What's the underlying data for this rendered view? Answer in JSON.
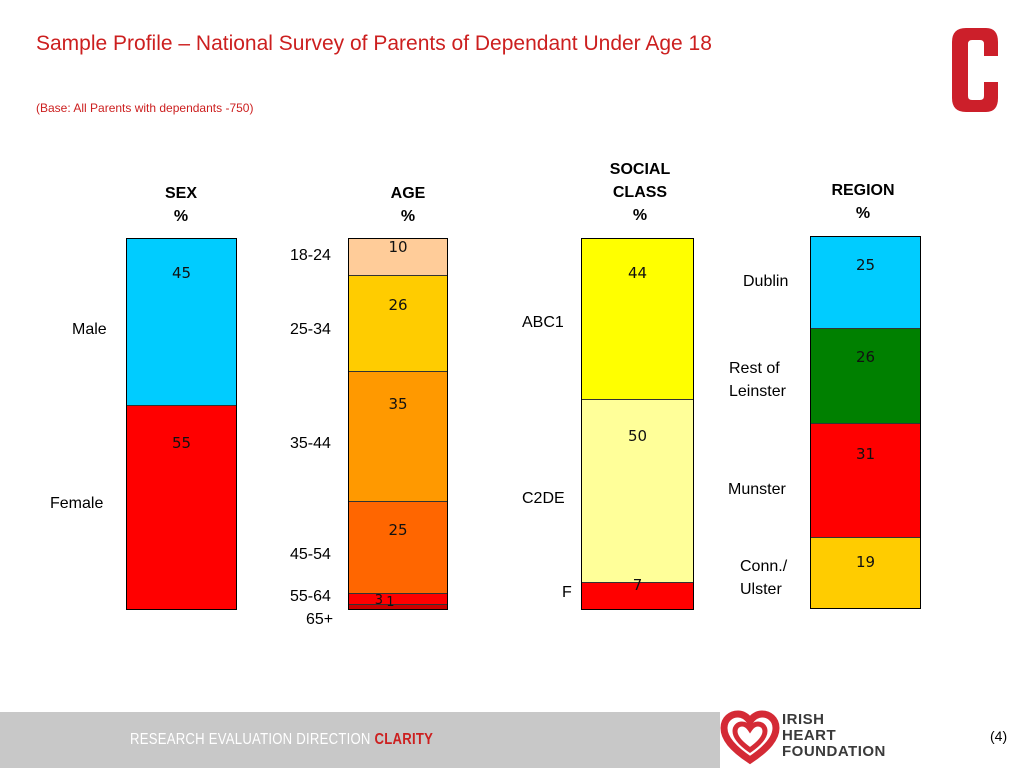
{
  "header": {
    "title": "Sample Profile – National Survey of Parents of Dependant Under Age 18",
    "subtitle": "(Base: All Parents with dependants -750)"
  },
  "chart_data": [
    {
      "type": "bar",
      "title": "SEX",
      "unit": "%",
      "stacked": true,
      "categories": [
        "Male",
        "Female"
      ],
      "values": [
        45,
        55
      ],
      "colors": [
        "#00ccff",
        "#ff0000"
      ]
    },
    {
      "type": "bar",
      "title": "AGE",
      "unit": "%",
      "stacked": true,
      "categories": [
        "18-24",
        "25-34",
        "35-44",
        "45-54",
        "55-64",
        "65+"
      ],
      "values": [
        10,
        26,
        35,
        25,
        3,
        1
      ],
      "colors": [
        "#ffcc99",
        "#ffcc00",
        "#ff9900",
        "#ff6600",
        "#ff0000",
        "#cc0000"
      ]
    },
    {
      "type": "bar",
      "title": "SOCIAL CLASS",
      "unit": "%",
      "stacked": true,
      "categories": [
        "ABC1",
        "C2DE",
        "F"
      ],
      "values": [
        44,
        50,
        7
      ],
      "colors": [
        "#ffff00",
        "#ffff99",
        "#ff0000"
      ]
    },
    {
      "type": "bar",
      "title": "REGION",
      "unit": "%",
      "stacked": true,
      "categories": [
        "Dublin",
        "Rest of Leinster",
        "Munster",
        "Conn./ Ulster"
      ],
      "values": [
        25,
        26,
        31,
        19
      ],
      "colors": [
        "#00ccff",
        "#008000",
        "#ff0000",
        "#ffcc00"
      ]
    }
  ],
  "labels": {
    "sex": {
      "h1": "SEX",
      "h2": "%",
      "male": "Male",
      "female": "Female"
    },
    "age": {
      "h1": "AGE",
      "h2": "%",
      "a1": "18-24",
      "a2": "25-34",
      "a3": "35-44",
      "a4": "45-54",
      "a5": "55-64",
      "a6": "65+"
    },
    "social": {
      "h1": "SOCIAL",
      "h2": "CLASS",
      "h3": "%",
      "c1": "ABC1",
      "c2": "C2DE",
      "c3": "F"
    },
    "region": {
      "h1": "REGION",
      "h2": "%",
      "r1": "Dublin",
      "r2a": "Rest of",
      "r2b": "Leinster",
      "r3": "Munster",
      "r4a": "Conn./",
      "r4b": "Ulster"
    }
  },
  "footer": {
    "tagline_prefix": "RESEARCH EVALUATION DIRECTION ",
    "tagline_highlight": "CLARITY",
    "org_line1": "IRISH",
    "org_line2": "HEART",
    "org_line3": "FOUNDATION",
    "page": "(4)"
  },
  "colors": {
    "accent": "#cc1f1f",
    "footer_bg": "#c8c8c8"
  },
  "icons": {
    "brand": "c-logo-icon",
    "org": "heart-logo-icon"
  }
}
